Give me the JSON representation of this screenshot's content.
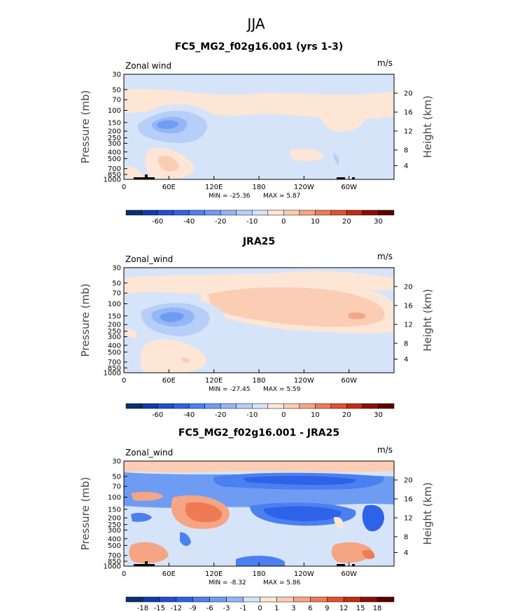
{
  "figure": {
    "title": "JJA"
  },
  "chart_data": [
    {
      "type": "heatmap",
      "title": "FC5_MG2_f02g16.001 (yrs 1-3)",
      "left_label": "Zonal wind",
      "right_label": "m/s",
      "xlabel": "",
      "ylabel": "Pressure (mb)",
      "y2label": "Height (km)",
      "x_ticks": [
        "0",
        "60E",
        "120E",
        "180",
        "120W",
        "60W"
      ],
      "y_ticks": [
        "30",
        "50",
        "70",
        "100",
        "150",
        "200",
        "250",
        "300",
        "400",
        "500",
        "700",
        "850",
        "1000"
      ],
      "y2_ticks": [
        "20",
        "16",
        "12",
        "8",
        "4"
      ],
      "min_text": "MIN = -25.36",
      "max_text": "MAX =   5.87",
      "colorbar": {
        "levels": [
          -70,
          -60,
          -50,
          -40,
          -30,
          -20,
          -15,
          -10,
          -5,
          0,
          5,
          10,
          15,
          20,
          25,
          30
        ],
        "labels": [
          "-60",
          "-40",
          "-20",
          "-10",
          "0",
          "10",
          "20",
          "30"
        ],
        "colors": [
          "#08306b",
          "#0c3ea8",
          "#1f4fd6",
          "#2e62e8",
          "#4a80f0",
          "#6f9cf3",
          "#93b6f6",
          "#b6cef8",
          "#d6e4fa",
          "#fde6d6",
          "#fbcdb4",
          "#f6a584",
          "#ef7b55",
          "#e3502e",
          "#c52a14",
          "#8c0f05",
          "#5c0000"
        ]
      },
      "features": [
        {
          "lon": 75,
          "p": 160,
          "value": -22
        },
        {
          "lon": 80,
          "p": 700,
          "value": 5
        },
        {
          "lon": 290,
          "p": 150,
          "value": 3
        },
        {
          "lon": 340,
          "p": 300,
          "value": -12
        }
      ]
    },
    {
      "type": "heatmap",
      "title": "JRA25",
      "left_label": "Zonal_wind",
      "right_label": "m/s",
      "xlabel": "",
      "ylabel": "Pressure (mb)",
      "y2label": "Height (km)",
      "x_ticks": [
        "0",
        "60E",
        "120E",
        "180",
        "120W",
        "60W"
      ],
      "y_ticks": [
        "30",
        "50",
        "70",
        "100",
        "150",
        "200",
        "250",
        "300",
        "400",
        "500",
        "700",
        "850",
        "1000"
      ],
      "y2_ticks": [
        "20",
        "16",
        "12",
        "8",
        "4"
      ],
      "min_text": "MIN = -27.45",
      "max_text": "MAX =   5.59",
      "colorbar": {
        "levels": [
          -70,
          -60,
          -50,
          -40,
          -30,
          -20,
          -15,
          -10,
          -5,
          0,
          5,
          10,
          15,
          20,
          25,
          30
        ],
        "labels": [
          "-60",
          "-40",
          "-20",
          "-10",
          "0",
          "10",
          "20",
          "30"
        ],
        "colors": [
          "#08306b",
          "#0c3ea8",
          "#1f4fd6",
          "#2e62e8",
          "#4a80f0",
          "#6f9cf3",
          "#93b6f6",
          "#b6cef8",
          "#d6e4fa",
          "#fde6d6",
          "#fbcdb4",
          "#f6a584",
          "#ef7b55",
          "#e3502e",
          "#c52a14",
          "#8c0f05",
          "#5c0000"
        ]
      },
      "features": [
        {
          "lon": 75,
          "p": 150,
          "value": -25
        },
        {
          "lon": 80,
          "p": 700,
          "value": 5
        },
        {
          "lon": 210,
          "p": 70,
          "value": 4
        }
      ]
    },
    {
      "type": "heatmap",
      "title": "FC5_MG2_f02g16.001 - JRA25",
      "left_label": "Zonal_wind",
      "right_label": "m/s",
      "xlabel": "",
      "ylabel": "Pressure (mb)",
      "y2label": "Height (km)",
      "x_ticks": [
        "0",
        "60E",
        "120E",
        "180",
        "120W",
        "60W"
      ],
      "y_ticks": [
        "30",
        "50",
        "70",
        "100",
        "150",
        "200",
        "250",
        "300",
        "400",
        "500",
        "700",
        "850",
        "1000"
      ],
      "y2_ticks": [
        "20",
        "16",
        "12",
        "8",
        "4"
      ],
      "min_text": "MIN =  -8.32",
      "max_text": "MAX =   5.86",
      "colorbar": {
        "levels": [
          -18,
          -15,
          -12,
          -9,
          -6,
          -3,
          -1,
          0,
          1,
          3,
          6,
          9,
          12,
          15,
          18
        ],
        "labels": [
          "-18",
          "-15",
          "-12",
          "-9",
          "-6",
          "-3",
          "-1",
          "0",
          "1",
          "3",
          "6",
          "9",
          "12",
          "15",
          "18"
        ],
        "colors": [
          "#08306b",
          "#0c3ea8",
          "#1f4fd6",
          "#2e62e8",
          "#4a80f0",
          "#6f9cf3",
          "#93b6f6",
          "#d6e4fa",
          "#fde6d6",
          "#fbcdb4",
          "#f6a584",
          "#ef7b55",
          "#e3502e",
          "#c52a14",
          "#8c0f05",
          "#5c0000"
        ]
      },
      "features": [
        {
          "lon": 200,
          "p": 60,
          "value": -7
        },
        {
          "lon": 230,
          "p": 160,
          "value": -6
        },
        {
          "lon": 110,
          "p": 150,
          "value": 4
        },
        {
          "lon": 20,
          "p": 200,
          "value": -5
        },
        {
          "lon": 325,
          "p": 200,
          "value": -7
        },
        {
          "lon": 60,
          "p": 450,
          "value": -5
        }
      ]
    }
  ]
}
